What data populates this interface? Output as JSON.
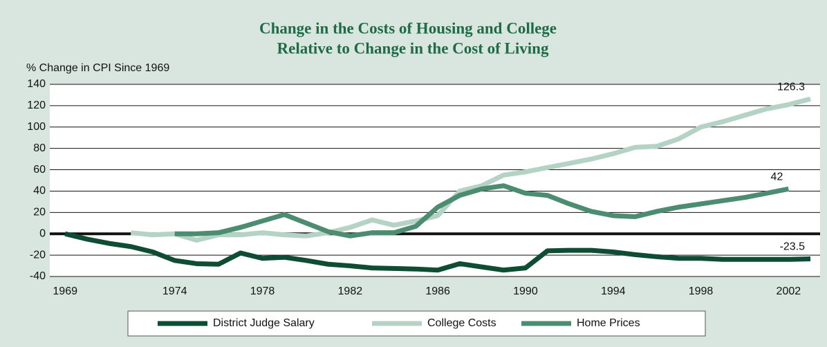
{
  "chart_data": {
    "type": "line",
    "title": [
      "Change in the Costs of Housing and College",
      "Relative to Change in the Cost of Living"
    ],
    "y_label": "% Change in CPI Since 1969",
    "x": [
      1969,
      1970,
      1971,
      1972,
      1973,
      1974,
      1975,
      1976,
      1977,
      1978,
      1979,
      1980,
      1981,
      1982,
      1983,
      1984,
      1985,
      1986,
      1987,
      1988,
      1989,
      1990,
      1991,
      1992,
      1993,
      1994,
      1995,
      1996,
      1997,
      1998,
      1999,
      2000,
      2001,
      2002,
      2003
    ],
    "series": [
      {
        "name": "District Judge Salary",
        "color": "#0e4d34",
        "values": [
          0,
          -5,
          -9,
          -12,
          -17,
          -25,
          -28,
          -28.5,
          -18,
          -23,
          -22,
          -25,
          -28.5,
          -30,
          -32,
          -32.5,
          -33,
          -34,
          -28,
          -31,
          -34,
          -32,
          -16,
          -15.5,
          -15.5,
          -17,
          -19.5,
          -21.5,
          -23,
          -23,
          -24,
          -24,
          -24,
          -24,
          -23.5
        ]
      },
      {
        "name": "College Costs",
        "color": "#b5d3c5",
        "values": [
          null,
          null,
          null,
          1,
          -1,
          0,
          -6,
          -1,
          -1,
          1,
          -1,
          -2,
          1,
          6,
          13,
          8,
          12,
          17,
          40,
          45,
          55,
          58,
          62,
          66,
          70,
          75,
          81,
          82,
          89,
          100,
          105,
          111,
          117,
          121,
          126.3
        ]
      },
      {
        "name": "Home Prices",
        "color": "#4c8c71",
        "values": [
          null,
          null,
          null,
          null,
          null,
          0,
          0,
          1,
          6,
          12,
          18,
          10,
          2,
          -2,
          1,
          1,
          7,
          25,
          36,
          42,
          45,
          38,
          36,
          28,
          21,
          17,
          16,
          21,
          25,
          28,
          31,
          34,
          38,
          42,
          null
        ]
      }
    ],
    "xlim": [
      1968.3,
      2003.44
    ],
    "xticks": [
      1969,
      1974,
      1978,
      1982,
      1986,
      1990,
      1994,
      1998,
      2002
    ],
    "ylim": [
      -40,
      140
    ],
    "yticks": [
      -40,
      -20,
      0,
      20,
      40,
      60,
      80,
      100,
      120,
      140
    ],
    "grid": true,
    "legend": "bottom"
  }
}
